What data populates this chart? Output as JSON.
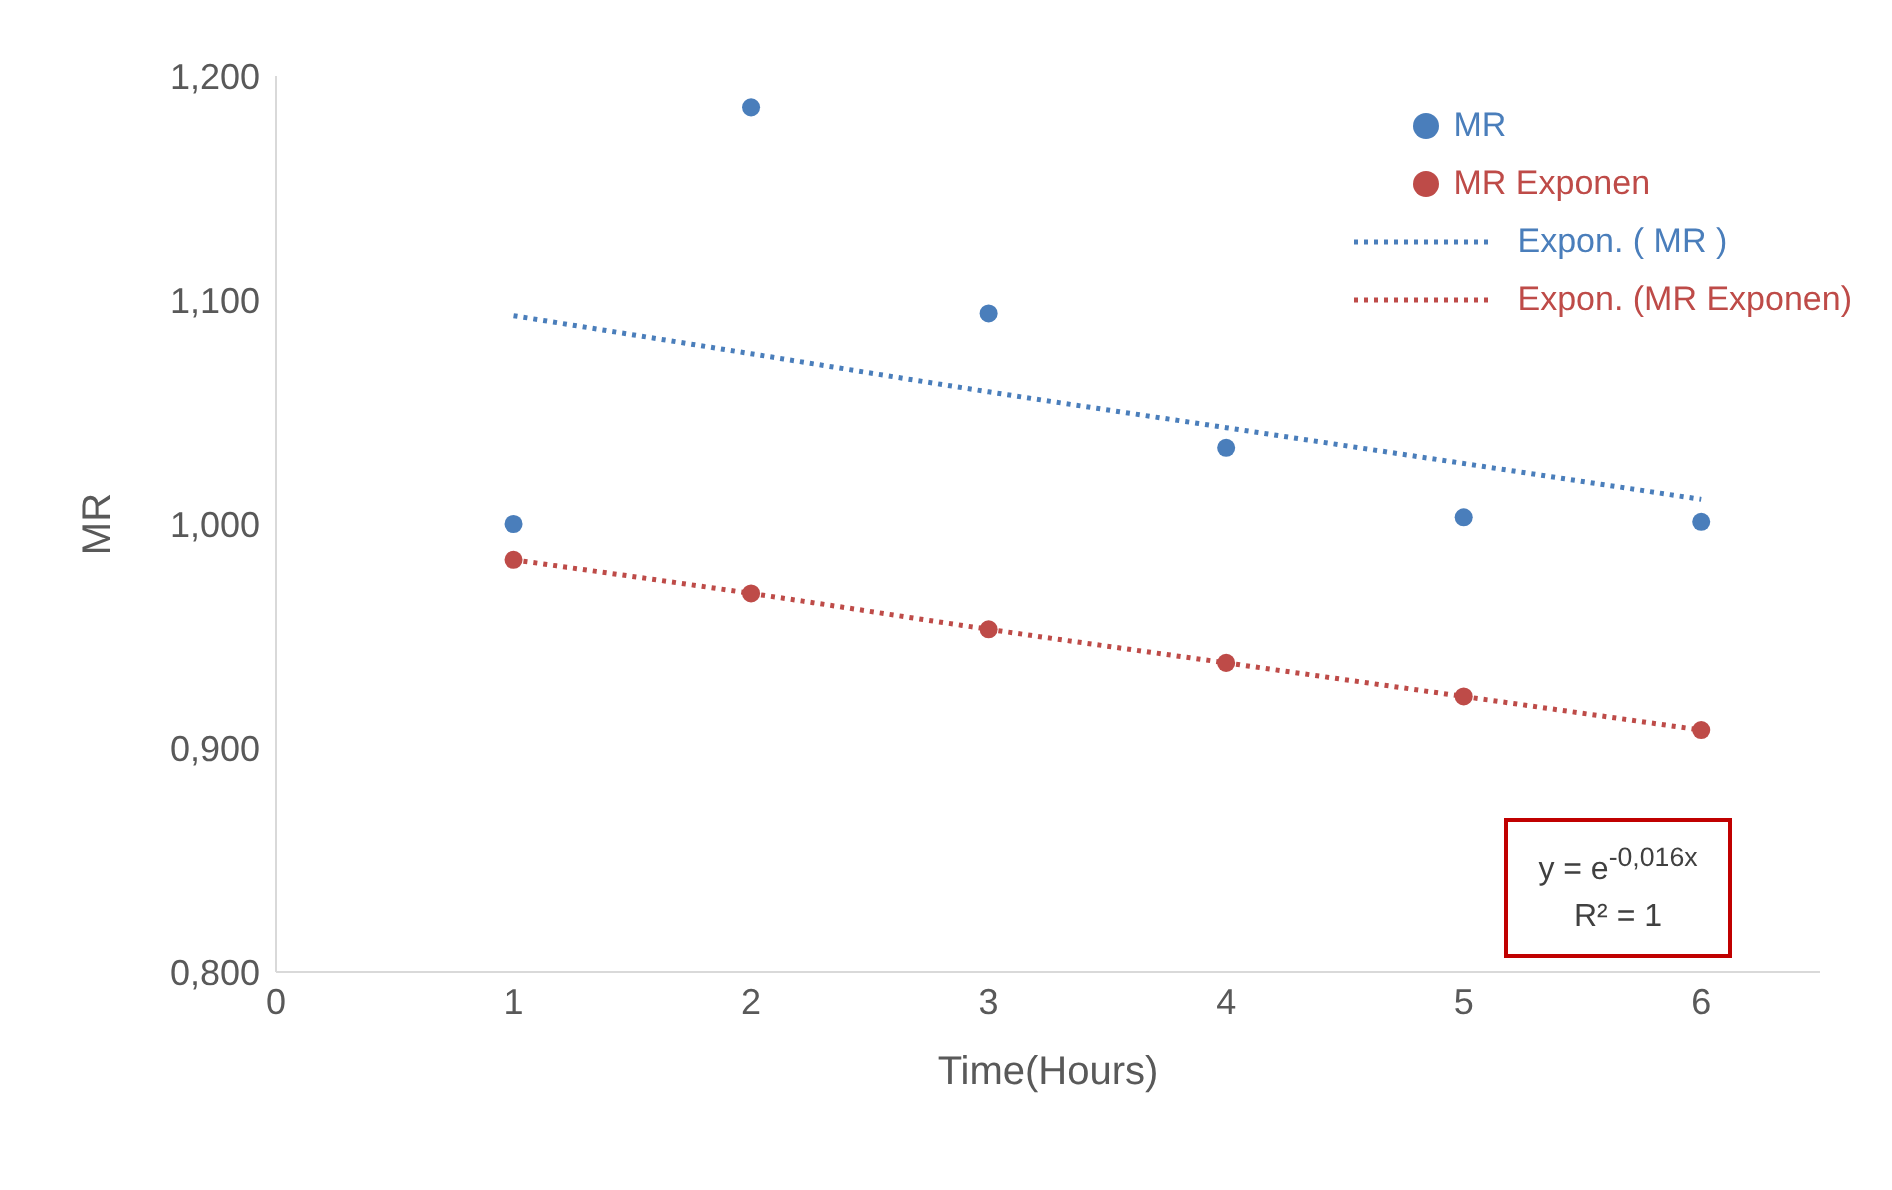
{
  "chart_data": {
    "type": "scatter",
    "xlabel": "Time(Hours)",
    "ylabel": "MR",
    "x": [
      1,
      2,
      3,
      4,
      5,
      6
    ],
    "series": [
      {
        "name": "MR",
        "color": "#4a7ebb",
        "marker": "circle",
        "values": [
          1.0,
          1.186,
          1.094,
          1.034,
          1.003,
          1.001
        ]
      },
      {
        "name": "MR Exponen",
        "color": "#be4b48",
        "marker": "circle",
        "values": [
          0.984,
          0.969,
          0.953,
          0.938,
          0.923,
          0.908
        ]
      },
      {
        "name": "Expon. ( MR )",
        "type": "line",
        "color": "#4a7ebb",
        "marker": "none",
        "line_style": "dotted",
        "x": [
          1,
          2,
          3,
          4,
          5,
          6
        ],
        "values": [
          1.093,
          1.076,
          1.059,
          1.043,
          1.027,
          1.011
        ]
      },
      {
        "name": "Expon. (MR Exponen)",
        "type": "line",
        "color": "#be4b48",
        "marker": "none",
        "line_style": "dotted",
        "x": [
          1,
          2,
          3,
          4,
          5,
          6
        ],
        "values": [
          0.984,
          0.969,
          0.953,
          0.938,
          0.923,
          0.908
        ]
      }
    ],
    "xlim": [
      0,
      6.5
    ],
    "xticks": [
      0,
      1,
      2,
      3,
      4,
      5,
      6
    ],
    "ylim": [
      0.8,
      1.2
    ],
    "yticks": [
      {
        "value": 0.8,
        "label": "0,800"
      },
      {
        "value": 0.9,
        "label": "0,900"
      },
      {
        "value": 1.0,
        "label": "1,000"
      },
      {
        "value": 1.1,
        "label": "1,100"
      },
      {
        "value": 1.2,
        "label": "1,200"
      }
    ],
    "grid": false,
    "legend": "top right",
    "annotations": [
      "y = e$^{-0,016x}$",
      "R² = 1"
    ]
  }
}
